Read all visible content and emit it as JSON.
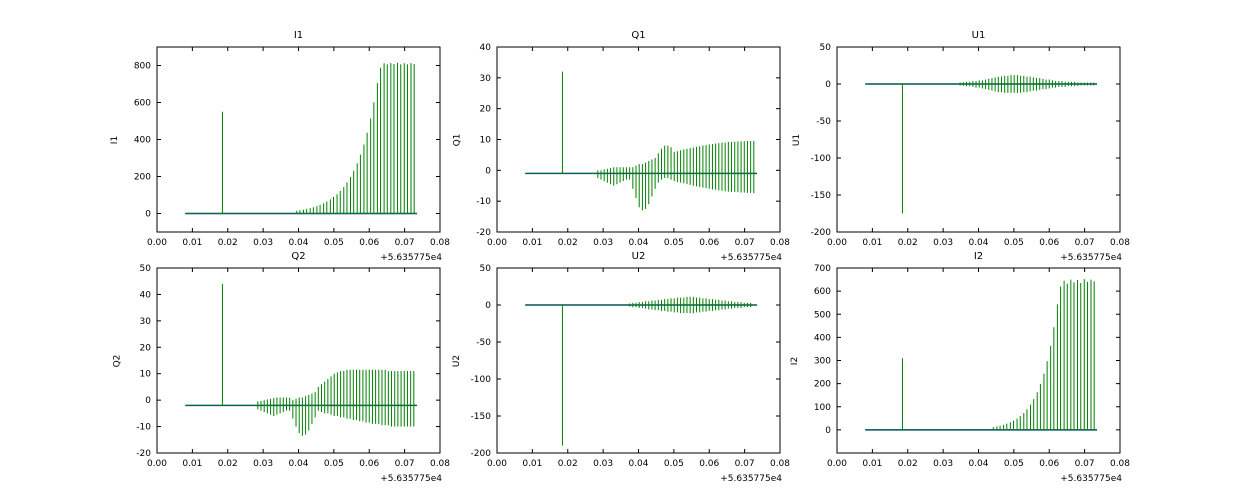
{
  "chart_common": {
    "x_offset_label": "+5.635775e4",
    "xlim": [
      0,
      0.08
    ],
    "xticks": [
      0,
      0.01,
      0.02,
      0.03,
      0.04,
      0.05,
      0.06,
      0.07,
      0.08
    ],
    "xtick_labels": [
      "0.00",
      "0.01",
      "0.02",
      "0.03",
      "0.04",
      "0.05",
      "0.06",
      "0.07",
      "0.08"
    ],
    "baseline_x_range": [
      0.008,
      0.0735
    ],
    "colors": {
      "signal": "#008000",
      "baseline": "#0000ff",
      "axis": "#000000",
      "background": "#ffffff"
    }
  },
  "chart_data": [
    {
      "type": "line",
      "title": "I1",
      "ylabel": "I1",
      "ylim": [
        -100,
        900
      ],
      "yticks": [
        0,
        200,
        400,
        600,
        800
      ],
      "baseline": 0,
      "spikes": [
        [
          0.0185,
          0,
          550
        ],
        [
          0.0395,
          0,
          15
        ],
        [
          0.0404,
          0,
          18
        ],
        [
          0.0414,
          0,
          21
        ],
        [
          0.0423,
          0,
          25
        ],
        [
          0.0433,
          0,
          29
        ],
        [
          0.0442,
          0,
          34
        ],
        [
          0.0452,
          0,
          40
        ],
        [
          0.0461,
          0,
          47
        ],
        [
          0.0471,
          0,
          55
        ],
        [
          0.048,
          0,
          65
        ],
        [
          0.049,
          0,
          76
        ],
        [
          0.0499,
          0,
          89
        ],
        [
          0.0509,
          0,
          104
        ],
        [
          0.0518,
          0,
          122
        ],
        [
          0.0528,
          0,
          143
        ],
        [
          0.0537,
          0,
          168
        ],
        [
          0.0547,
          0,
          197
        ],
        [
          0.0556,
          0,
          231
        ],
        [
          0.0566,
          0,
          271
        ],
        [
          0.0575,
          0,
          318
        ],
        [
          0.0585,
          0,
          373
        ],
        [
          0.0594,
          0,
          437
        ],
        [
          0.0604,
          0,
          513
        ],
        [
          0.0613,
          0,
          601
        ],
        [
          0.0623,
          0,
          705
        ],
        [
          0.0632,
          0,
          788
        ],
        [
          0.0642,
          0,
          812
        ],
        [
          0.0651,
          0,
          806
        ],
        [
          0.0661,
          0,
          813
        ],
        [
          0.067,
          0,
          808
        ],
        [
          0.068,
          0,
          814
        ],
        [
          0.0689,
          0,
          807
        ],
        [
          0.0699,
          0,
          812
        ],
        [
          0.0708,
          0,
          806
        ],
        [
          0.0718,
          0,
          813
        ],
        [
          0.0727,
          0,
          808
        ]
      ]
    },
    {
      "type": "line",
      "title": "Q1",
      "ylabel": "Q1",
      "ylim": [
        -20,
        40
      ],
      "yticks": [
        -20,
        -10,
        0,
        10,
        20,
        30,
        40
      ],
      "baseline": -1,
      "spikes": [
        [
          0.0185,
          -1,
          32
        ],
        [
          0.0285,
          -2.5,
          0
        ],
        [
          0.0294,
          -3,
          0
        ],
        [
          0.0303,
          -3.5,
          0.3
        ],
        [
          0.0312,
          -4,
          0.5
        ],
        [
          0.0321,
          -4.5,
          0.8
        ],
        [
          0.033,
          -5,
          1
        ],
        [
          0.0339,
          -4.5,
          1
        ],
        [
          0.0348,
          -4,
          1
        ],
        [
          0.0357,
          -3.5,
          1
        ],
        [
          0.0366,
          -3,
          1
        ],
        [
          0.0375,
          -3,
          1
        ],
        [
          0.0384,
          -6,
          1
        ],
        [
          0.0393,
          -9,
          1.5
        ],
        [
          0.0402,
          -12,
          2
        ],
        [
          0.0411,
          -13,
          2
        ],
        [
          0.042,
          -12.5,
          2.5
        ],
        [
          0.0429,
          -11,
          3
        ],
        [
          0.0438,
          -8.5,
          3.5
        ],
        [
          0.0447,
          -6,
          4
        ],
        [
          0.0456,
          -4,
          5.5
        ],
        [
          0.0465,
          -3,
          7
        ],
        [
          0.0474,
          -2.5,
          8
        ],
        [
          0.0483,
          -2.5,
          8
        ],
        [
          0.0492,
          -3,
          7.5
        ],
        [
          0.0501,
          -3.5,
          6
        ],
        [
          0.051,
          -3.8,
          6.2
        ],
        [
          0.0519,
          -4,
          6.5
        ],
        [
          0.0528,
          -4.2,
          6.8
        ],
        [
          0.0537,
          -4.5,
          7
        ],
        [
          0.0546,
          -4.7,
          7.2
        ],
        [
          0.0555,
          -5,
          7.4
        ],
        [
          0.0564,
          -5.2,
          7.6
        ],
        [
          0.0573,
          -5.4,
          7.8
        ],
        [
          0.0582,
          -5.6,
          8
        ],
        [
          0.0591,
          -5.8,
          8.2
        ],
        [
          0.06,
          -6,
          8.4
        ],
        [
          0.0609,
          -6.2,
          8.5
        ],
        [
          0.0618,
          -6.3,
          8.7
        ],
        [
          0.0627,
          -6.5,
          8.8
        ],
        [
          0.0636,
          -6.6,
          9
        ],
        [
          0.0645,
          -6.8,
          9
        ],
        [
          0.0654,
          -6.9,
          9.2
        ],
        [
          0.0663,
          -7,
          9.2
        ],
        [
          0.0672,
          -7,
          9.3
        ],
        [
          0.0681,
          -7.1,
          9.4
        ],
        [
          0.069,
          -7.2,
          9.4
        ],
        [
          0.0699,
          -7.2,
          9.5
        ],
        [
          0.0708,
          -7.3,
          9.5
        ],
        [
          0.0717,
          -7.3,
          9.5
        ],
        [
          0.0726,
          -7.4,
          9.5
        ]
      ]
    },
    {
      "type": "line",
      "title": "U1",
      "ylabel": "U1",
      "ylim": [
        -200,
        50
      ],
      "yticks": [
        -200,
        -150,
        -100,
        -50,
        0,
        50
      ],
      "baseline": 0,
      "spikes": [
        [
          0.0185,
          -175,
          0
        ],
        [
          0.0348,
          -2,
          2
        ],
        [
          0.0357,
          -2.5,
          2.5
        ],
        [
          0.0366,
          -3,
          3
        ],
        [
          0.0375,
          -3,
          3
        ],
        [
          0.0384,
          -4,
          4
        ],
        [
          0.0393,
          -5,
          4
        ],
        [
          0.0402,
          -5,
          5
        ],
        [
          0.0411,
          -6,
          5
        ],
        [
          0.042,
          -7,
          6
        ],
        [
          0.0429,
          -8,
          7
        ],
        [
          0.0438,
          -9,
          8
        ],
        [
          0.0447,
          -10,
          9
        ],
        [
          0.0456,
          -11,
          10
        ],
        [
          0.0465,
          -11,
          10
        ],
        [
          0.0474,
          -12,
          11
        ],
        [
          0.0483,
          -12,
          11
        ],
        [
          0.0492,
          -12,
          12
        ],
        [
          0.0501,
          -12,
          12
        ],
        [
          0.051,
          -12,
          12
        ],
        [
          0.0519,
          -12,
          11
        ],
        [
          0.0528,
          -11,
          11
        ],
        [
          0.0537,
          -11,
          10
        ],
        [
          0.0546,
          -10,
          10
        ],
        [
          0.0555,
          -9,
          9
        ],
        [
          0.0564,
          -9,
          8
        ],
        [
          0.0573,
          -8,
          8
        ],
        [
          0.0582,
          -7,
          7
        ],
        [
          0.0591,
          -7,
          6
        ],
        [
          0.06,
          -6,
          6
        ],
        [
          0.0609,
          -5,
          5
        ],
        [
          0.0618,
          -5,
          4
        ],
        [
          0.0627,
          -4,
          4
        ],
        [
          0.0636,
          -4,
          4
        ],
        [
          0.0645,
          -4,
          3
        ],
        [
          0.0654,
          -3,
          3
        ],
        [
          0.0663,
          -3,
          3
        ],
        [
          0.0672,
          -3,
          3
        ],
        [
          0.0681,
          -3,
          2
        ],
        [
          0.069,
          -2,
          2
        ],
        [
          0.0699,
          -2,
          2
        ],
        [
          0.0708,
          -2,
          2
        ],
        [
          0.0717,
          -2,
          2
        ],
        [
          0.0726,
          -2,
          2
        ]
      ]
    },
    {
      "type": "line",
      "title": "Q2",
      "ylabel": "Q2",
      "ylim": [
        -20,
        50
      ],
      "yticks": [
        -20,
        -10,
        0,
        10,
        20,
        30,
        40,
        50
      ],
      "baseline": -2,
      "spikes": [
        [
          0.0185,
          -2,
          44
        ],
        [
          0.0285,
          -3.5,
          -0.5
        ],
        [
          0.0294,
          -4,
          -0.3
        ],
        [
          0.0303,
          -4.5,
          0
        ],
        [
          0.0312,
          -5,
          0.3
        ],
        [
          0.0321,
          -5.5,
          0.5
        ],
        [
          0.033,
          -6,
          0.8
        ],
        [
          0.0339,
          -5.5,
          1
        ],
        [
          0.0348,
          -5,
          1
        ],
        [
          0.0357,
          -4.5,
          1
        ],
        [
          0.0366,
          -4,
          1
        ],
        [
          0.0375,
          -4,
          1
        ],
        [
          0.0384,
          -7,
          0
        ],
        [
          0.0393,
          -10,
          0.5
        ],
        [
          0.0402,
          -12.5,
          1
        ],
        [
          0.0411,
          -13.5,
          1
        ],
        [
          0.042,
          -13,
          1.5
        ],
        [
          0.0429,
          -11.5,
          2
        ],
        [
          0.0438,
          -9,
          2.5
        ],
        [
          0.0447,
          -6.5,
          3
        ],
        [
          0.0456,
          -4,
          5
        ],
        [
          0.0465,
          -4.5,
          6
        ],
        [
          0.0474,
          -5,
          7
        ],
        [
          0.0483,
          -5,
          8
        ],
        [
          0.0492,
          -5.5,
          9
        ],
        [
          0.0501,
          -6,
          10
        ],
        [
          0.051,
          -6,
          10.5
        ],
        [
          0.0519,
          -6.5,
          11
        ],
        [
          0.0528,
          -6.5,
          11
        ],
        [
          0.0537,
          -7,
          11.5
        ],
        [
          0.0546,
          -7,
          11.5
        ],
        [
          0.0555,
          -7.5,
          11.5
        ],
        [
          0.0564,
          -7.5,
          11.5
        ],
        [
          0.0573,
          -8,
          11.5
        ],
        [
          0.0582,
          -8,
          11.5
        ],
        [
          0.0591,
          -8.5,
          11.5
        ],
        [
          0.06,
          -8.5,
          11.5
        ],
        [
          0.0609,
          -9,
          11.5
        ],
        [
          0.0618,
          -9,
          11.5
        ],
        [
          0.0627,
          -9,
          11.5
        ],
        [
          0.0636,
          -9.5,
          11.5
        ],
        [
          0.0645,
          -9.5,
          11.5
        ],
        [
          0.0654,
          -9.5,
          11
        ],
        [
          0.0663,
          -10,
          11
        ],
        [
          0.0672,
          -10,
          11
        ],
        [
          0.0681,
          -10,
          11
        ],
        [
          0.069,
          -10,
          11
        ],
        [
          0.0699,
          -10,
          11
        ],
        [
          0.0708,
          -10,
          11
        ],
        [
          0.0717,
          -10,
          11
        ],
        [
          0.0726,
          -10,
          11
        ]
      ]
    },
    {
      "type": "line",
      "title": "U2",
      "ylabel": "U2",
      "ylim": [
        -200,
        50
      ],
      "yticks": [
        -200,
        -150,
        -100,
        -50,
        0,
        50
      ],
      "baseline": 0,
      "spikes": [
        [
          0.0185,
          -190,
          0
        ],
        [
          0.0375,
          -2,
          2
        ],
        [
          0.0384,
          -3,
          3
        ],
        [
          0.0393,
          -3,
          3
        ],
        [
          0.0402,
          -4,
          4
        ],
        [
          0.0411,
          -4,
          4
        ],
        [
          0.042,
          -5,
          5
        ],
        [
          0.0429,
          -6,
          5
        ],
        [
          0.0438,
          -6,
          6
        ],
        [
          0.0447,
          -7,
          6
        ],
        [
          0.0456,
          -7,
          7
        ],
        [
          0.0465,
          -8,
          7
        ],
        [
          0.0474,
          -8,
          8
        ],
        [
          0.0483,
          -9,
          8
        ],
        [
          0.0492,
          -9,
          9
        ],
        [
          0.0501,
          -10,
          9
        ],
        [
          0.051,
          -10,
          10
        ],
        [
          0.0519,
          -11,
          10
        ],
        [
          0.0528,
          -11,
          10
        ],
        [
          0.0537,
          -11,
          11
        ],
        [
          0.0546,
          -11,
          11
        ],
        [
          0.0555,
          -11,
          11
        ],
        [
          0.0564,
          -10,
          10
        ],
        [
          0.0573,
          -10,
          10
        ],
        [
          0.0582,
          -9,
          9
        ],
        [
          0.0591,
          -9,
          9
        ],
        [
          0.06,
          -8,
          8
        ],
        [
          0.0609,
          -8,
          8
        ],
        [
          0.0618,
          -7,
          7
        ],
        [
          0.0627,
          -7,
          7
        ],
        [
          0.0636,
          -6,
          6
        ],
        [
          0.0645,
          -6,
          6
        ],
        [
          0.0654,
          -5,
          5
        ],
        [
          0.0663,
          -5,
          5
        ],
        [
          0.0672,
          -4,
          4
        ],
        [
          0.0681,
          -4,
          4
        ],
        [
          0.069,
          -4,
          4
        ],
        [
          0.0699,
          -3,
          3
        ],
        [
          0.0708,
          -3,
          3
        ],
        [
          0.0717,
          -3,
          3
        ]
      ]
    },
    {
      "type": "line",
      "title": "I2",
      "ylabel": "I2",
      "ylim": [
        -100,
        700
      ],
      "yticks": [
        0,
        100,
        200,
        300,
        400,
        500,
        600,
        700
      ],
      "baseline": 0,
      "spikes": [
        [
          0.0185,
          0,
          310
        ],
        [
          0.0442,
          0,
          12
        ],
        [
          0.0452,
          0,
          15
        ],
        [
          0.0461,
          0,
          18
        ],
        [
          0.0471,
          0,
          22
        ],
        [
          0.048,
          0,
          27
        ],
        [
          0.049,
          0,
          33
        ],
        [
          0.0499,
          0,
          40
        ],
        [
          0.0509,
          0,
          49
        ],
        [
          0.0518,
          0,
          60
        ],
        [
          0.0528,
          0,
          73
        ],
        [
          0.0537,
          0,
          89
        ],
        [
          0.0547,
          0,
          109
        ],
        [
          0.0556,
          0,
          133
        ],
        [
          0.0566,
          0,
          163
        ],
        [
          0.0575,
          0,
          199
        ],
        [
          0.0585,
          0,
          243
        ],
        [
          0.0594,
          0,
          297
        ],
        [
          0.0604,
          0,
          363
        ],
        [
          0.0613,
          0,
          444
        ],
        [
          0.0623,
          0,
          543
        ],
        [
          0.0632,
          0,
          620
        ],
        [
          0.0642,
          0,
          645
        ],
        [
          0.0651,
          0,
          632
        ],
        [
          0.0661,
          0,
          650
        ],
        [
          0.067,
          0,
          638
        ],
        [
          0.068,
          0,
          648
        ],
        [
          0.0689,
          0,
          635
        ],
        [
          0.0699,
          0,
          652
        ],
        [
          0.0708,
          0,
          640
        ],
        [
          0.0718,
          0,
          650
        ],
        [
          0.0727,
          0,
          642
        ]
      ]
    }
  ]
}
